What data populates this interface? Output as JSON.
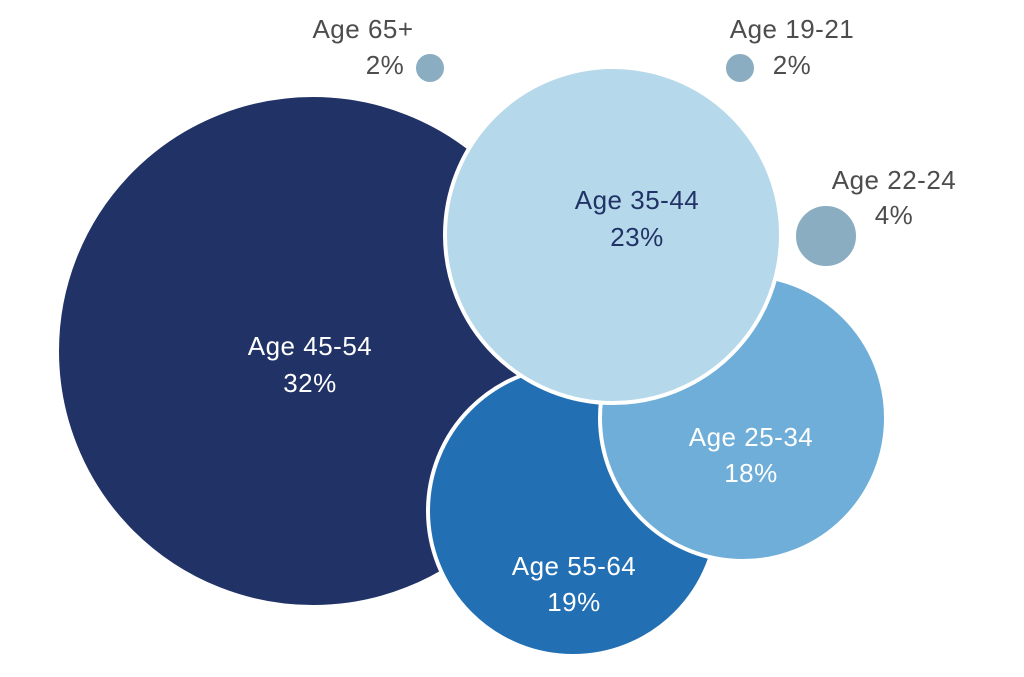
{
  "chart_data": {
    "type": "bubble",
    "unit": "%",
    "series": [
      {
        "label": "Age 45-54",
        "value_text": "32%",
        "value": 32,
        "color": "#213366",
        "text_color": "#ffffff"
      },
      {
        "label": "Age 35-44",
        "value_text": "23%",
        "value": 23,
        "color": "#b5d8ea",
        "text_color": "#213366"
      },
      {
        "label": "Age 55-64",
        "value_text": "19%",
        "value": 19,
        "color": "#226fb3",
        "text_color": "#ffffff"
      },
      {
        "label": "Age 25-34",
        "value_text": "18%",
        "value": 18,
        "color": "#6eaed8",
        "text_color": "#ffffff"
      },
      {
        "label": "Age 22-24",
        "value_text": "4%",
        "value": 4,
        "color": "#8aadc1",
        "text_color": "#4d4d4d"
      },
      {
        "label": "Age 65+",
        "value_text": "2%",
        "value": 2,
        "color": "#8aadc1",
        "text_color": "#4d4d4d"
      },
      {
        "label": "Age 19-21",
        "value_text": "2%",
        "value": 2,
        "color": "#8aadc1",
        "text_color": "#4d4d4d"
      }
    ]
  }
}
